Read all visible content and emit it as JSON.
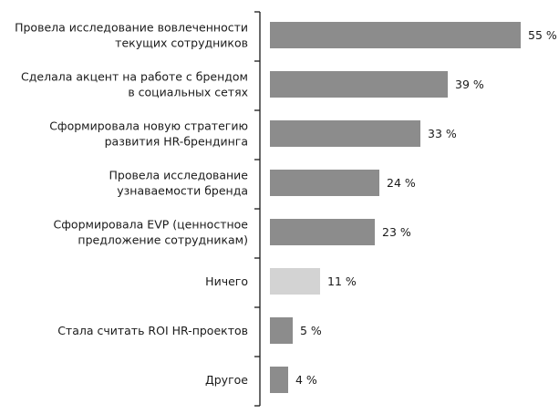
{
  "chart_data": {
    "type": "bar",
    "orientation": "horizontal",
    "title": "",
    "xlabel": "",
    "ylabel": "",
    "xlim": [
      0,
      55
    ],
    "grid": false,
    "unit": " %",
    "colors": {
      "default": "#8c8c8c",
      "highlight": "#d3d3d3"
    },
    "categories": [
      [
        "Провела исследование вовлеченности",
        "текущих сотрудников"
      ],
      [
        "Сделала акцент на работе с брендом",
        "в социальных сетях"
      ],
      [
        "Сформировала новую стратегию",
        "развития HR-брендинга"
      ],
      [
        "Провела исследование",
        "узнаваемости бренда"
      ],
      [
        "Сформировала EVP (ценностное",
        "предложение сотрудникам)"
      ],
      [
        "Ничего"
      ],
      [
        "Стала считать ROI HR-проектов"
      ],
      [
        "Другое"
      ]
    ],
    "values": [
      55,
      39,
      33,
      24,
      23,
      11,
      5,
      4
    ],
    "value_labels": [
      "55 %",
      "39 %",
      "33 %",
      "24 %",
      "23 %",
      "11 %",
      "5 %",
      "4 %"
    ],
    "highlighted": [
      false,
      false,
      false,
      false,
      false,
      true,
      false,
      false
    ]
  }
}
